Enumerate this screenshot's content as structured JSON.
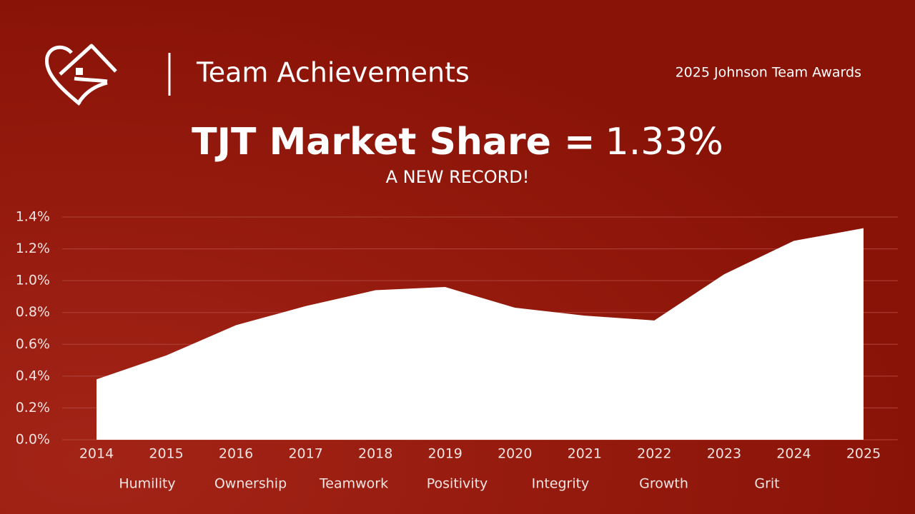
{
  "header": {
    "title": "Team Achievements",
    "event": "2025 Johnson Team Awards"
  },
  "chart_data": {
    "type": "area",
    "title": "TJT Market Share =",
    "headline_value": "1.33%",
    "subtitle": "A NEW RECORD!",
    "categories": [
      "2014",
      "2015",
      "2016",
      "2017",
      "2018",
      "2019",
      "2020",
      "2021",
      "2022",
      "2023",
      "2024",
      "2025"
    ],
    "values": [
      0.38,
      0.53,
      0.72,
      0.84,
      0.94,
      0.96,
      0.83,
      0.78,
      0.75,
      1.04,
      1.25,
      1.33
    ],
    "color": "#ffffff",
    "ylim": [
      0,
      1.4
    ],
    "yticks": [
      {
        "value": 0,
        "label": "0.0%"
      },
      {
        "value": 0.2,
        "label": "0.2%"
      },
      {
        "value": 0.4,
        "label": "0.4%"
      },
      {
        "value": 0.6,
        "label": "0.6%"
      },
      {
        "value": 0.8,
        "label": "0.8%"
      },
      {
        "value": 1.0,
        "label": "1.0%"
      },
      {
        "value": 1.2,
        "label": "1.2%"
      },
      {
        "value": 1.4,
        "label": "1.4%"
      }
    ],
    "grid": true,
    "core_values": [
      "Humility",
      "Ownership",
      "Teamwork",
      "Positivity",
      "Integrity",
      "Growth",
      "Grit"
    ]
  }
}
